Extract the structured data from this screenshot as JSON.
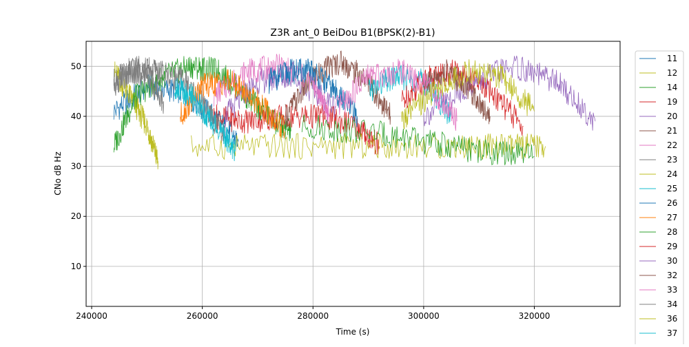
{
  "chart_data": {
    "type": "line",
    "title": "Z3R ant_0 BeiDou B1(BPSK(2)-B1)",
    "xlabel": "Time (s)",
    "ylabel": "CNo dB Hz",
    "xlim": [
      239000,
      335500
    ],
    "ylim": [
      2,
      55
    ],
    "x_ticks": [
      240000,
      260000,
      280000,
      300000,
      320000
    ],
    "y_ticks": [
      10,
      20,
      30,
      40,
      50
    ],
    "grid": true,
    "legend_position": "right",
    "series": [
      {
        "name": "11",
        "color": "#1f77b4",
        "x": [
          244000,
          250000,
          256000,
          262000,
          266500
        ],
        "y": [
          41,
          46,
          45,
          40,
          35
        ]
      },
      {
        "name": "12",
        "color": "#bcbd22",
        "x": [
          244000,
          247000,
          250000,
          252000
        ],
        "y": [
          49,
          44,
          38,
          31
        ]
      },
      {
        "name": "14",
        "color": "#2ca02c",
        "x": [
          244000,
          248000,
          253000,
          258000,
          263000,
          268000,
          273000,
          276000
        ],
        "y": [
          34,
          44,
          48,
          50,
          49,
          44,
          39,
          37
        ]
      },
      {
        "name": "19",
        "color": "#d62728",
        "x": [
          262000,
          268000,
          275000,
          282000,
          288000,
          292000
        ],
        "y": [
          40,
          39,
          40,
          40,
          38,
          34
        ]
      },
      {
        "name": "20",
        "color": "#9467bd",
        "x": [
          264000,
          270000,
          276000,
          284000
        ],
        "y": [
          40,
          47,
          48,
          42
        ]
      },
      {
        "name": "21",
        "color": "#8c564b",
        "x": [
          275000,
          280000,
          285000,
          290000,
          294000
        ],
        "y": [
          40,
          48,
          51,
          47,
          40
        ]
      },
      {
        "name": "22",
        "color": "#e377c2",
        "x": [
          262000,
          268000,
          274000,
          280000,
          283000
        ],
        "y": [
          44,
          49,
          50,
          47,
          40
        ]
      },
      {
        "name": "23",
        "color": "#7f7f7f",
        "x": [
          244000,
          248000,
          252000,
          257000,
          261000,
          264000
        ],
        "y": [
          47,
          50,
          49,
          47,
          41,
          36
        ]
      },
      {
        "name": "24",
        "color": "#bcbd22",
        "x": [
          258000,
          275000,
          290000,
          305000,
          315000,
          322000
        ],
        "y": [
          34,
          34,
          34,
          34,
          34,
          34
        ]
      },
      {
        "name": "25",
        "color": "#17becf",
        "x": [
          290000,
          295000,
          300000,
          305000
        ],
        "y": [
          45,
          48,
          47,
          40
        ]
      },
      {
        "name": "26",
        "color": "#1f77b4",
        "x": [
          272000,
          276000,
          280000,
          284000,
          288000
        ],
        "y": [
          47,
          49,
          49,
          45,
          40
        ]
      },
      {
        "name": "27",
        "color": "#ff7f0e",
        "x": [
          256000,
          260000,
          265000,
          270000,
          275000
        ],
        "y": [
          40,
          46,
          47,
          43,
          37
        ]
      },
      {
        "name": "28",
        "color": "#2ca02c",
        "x": [
          278000,
          290000,
          300000,
          310000,
          320000
        ],
        "y": [
          38,
          37,
          35,
          33,
          32
        ]
      },
      {
        "name": "29",
        "color": "#d62728",
        "x": [
          296000,
          301000,
          306000,
          312000,
          318000
        ],
        "y": [
          43,
          48,
          49,
          45,
          38
        ]
      },
      {
        "name": "30",
        "color": "#9467bd",
        "x": [
          300000,
          308000,
          316000,
          324000,
          331000
        ],
        "y": [
          40,
          46,
          50,
          47,
          39
        ]
      },
      {
        "name": "32",
        "color": "#8c564b",
        "x": [
          300000,
          304000,
          308000,
          312000
        ],
        "y": [
          46,
          49,
          46,
          40
        ]
      },
      {
        "name": "33",
        "color": "#e377c2",
        "x": [
          284000,
          290000,
          296000,
          302000,
          306000
        ],
        "y": [
          41,
          48,
          49,
          45,
          39
        ]
      },
      {
        "name": "34",
        "color": "#7f7f7f",
        "x": [
          244000,
          247000,
          250000,
          253000
        ],
        "y": [
          46,
          49,
          48,
          43
        ]
      },
      {
        "name": "36",
        "color": "#bcbd22",
        "x": [
          296000,
          302000,
          308000,
          314000,
          320000
        ],
        "y": [
          39,
          45,
          49,
          48,
          41
        ]
      },
      {
        "name": "37",
        "color": "#17becf",
        "x": [
          255000,
          258000,
          261000,
          264000,
          266000
        ],
        "y": [
          46,
          44,
          40,
          36,
          33
        ]
      }
    ]
  }
}
